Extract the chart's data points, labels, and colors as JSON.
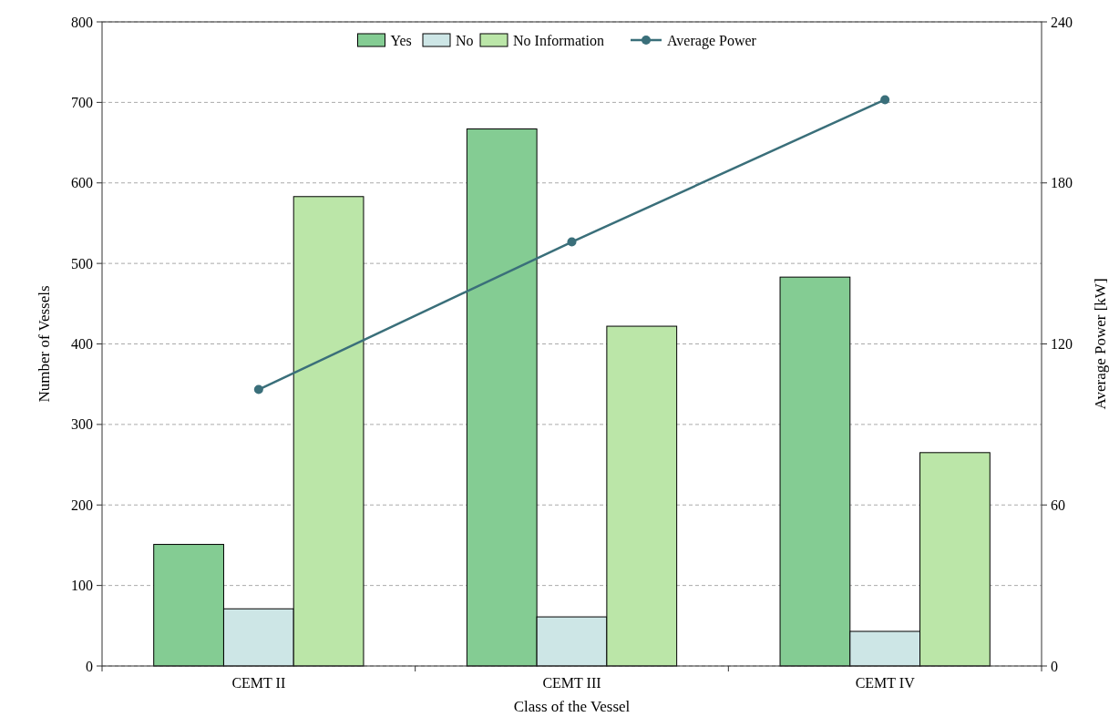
{
  "chart_data": {
    "type": "bar",
    "xlabel": "Class of the Vessel",
    "ylabel": "Number of Vessels",
    "y2label": "Average Power [kW]",
    "categories": [
      "CEMT II",
      "CEMT III",
      "CEMT IV"
    ],
    "series": [
      {
        "name": "Yes",
        "color": "#84cc93",
        "values": [
          151,
          667,
          483
        ]
      },
      {
        "name": "No",
        "color": "#cde6e6",
        "values": [
          71,
          61,
          43
        ]
      },
      {
        "name": "No Information",
        "color": "#bbe6a8",
        "values": [
          583,
          422,
          265
        ]
      },
      {
        "name": "Average Power",
        "type": "line",
        "axis": "y2",
        "color": "#3a6f7a",
        "marker": "circle",
        "values": [
          103,
          158,
          211
        ]
      }
    ],
    "ylim": [
      0,
      800
    ],
    "yticks": [
      0,
      100,
      200,
      300,
      400,
      500,
      600,
      700,
      800
    ],
    "y2lim": [
      0,
      240
    ],
    "y2ticks": [
      0,
      60,
      120,
      180,
      240
    ],
    "grid": "y",
    "legend": "top"
  }
}
